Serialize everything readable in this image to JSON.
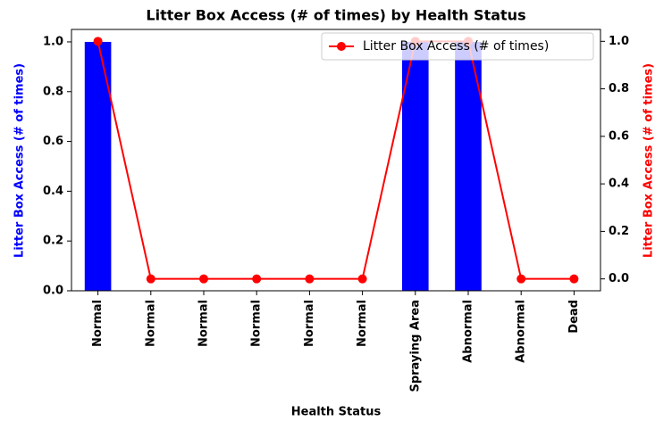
{
  "chart_data": {
    "type": "bar_line",
    "title": "Litter Box Access (# of times) by Health Status",
    "x_label": "Health Status",
    "y_label": "Litter Box Access (# of times)",
    "y2_label": "Litter Box Access (# of times)",
    "categories": [
      "Normal",
      "Normal",
      "Normal",
      "Normal",
      "Normal",
      "Normal",
      "Spraying Area",
      "Abnormal",
      "Abnormal",
      "Dead"
    ],
    "series": [
      {
        "type": "bar",
        "color": "#0000ff",
        "values": [
          1,
          0,
          0,
          0,
          0,
          0,
          1,
          1,
          0,
          0
        ]
      },
      {
        "type": "line",
        "name": "Litter Box Access (# of times)",
        "color": "#ff0000",
        "axis": "y2",
        "values": [
          1,
          0,
          0,
          0,
          0,
          0,
          1,
          1,
          0,
          0
        ]
      }
    ],
    "ylim": [
      0,
      1.05
    ],
    "yticks": [
      {
        "value": 0,
        "label": "0.0"
      },
      0.2,
      0.4,
      0.6,
      0.8,
      {
        "value": 1,
        "label": "1.0"
      }
    ],
    "y2lim": [
      -0.05,
      1.05
    ],
    "y2ticks": [
      {
        "value": 0,
        "label": "0.0"
      },
      0.2,
      0.4,
      0.6,
      0.8,
      {
        "value": 1,
        "label": "1.0"
      }
    ],
    "legend": "upper right",
    "y_label_color": "#0000ff",
    "y2_label_color": "#ff0000"
  }
}
